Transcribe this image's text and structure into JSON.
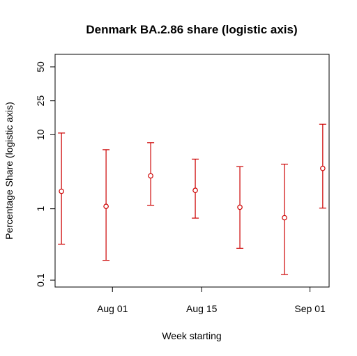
{
  "chart_data": {
    "type": "scatter",
    "title": "Denmark BA.2.86 share (logistic axis)",
    "xlabel": "Week starting",
    "ylabel": "Percentage Share (logistic axis)",
    "y_scale": "logit",
    "ylim": [
      0.08,
      60
    ],
    "xlim": [
      "2023-07-23",
      "2023-09-04"
    ],
    "x_ticks": [
      {
        "date": "2023-08-01",
        "label": "Aug 01"
      },
      {
        "date": "2023-08-15",
        "label": "Aug 15"
      },
      {
        "date": "2023-09-01",
        "label": "Sep 01"
      }
    ],
    "y_ticks": [
      {
        "value": 0.1,
        "label": "0.1"
      },
      {
        "value": 1,
        "label": "1"
      },
      {
        "value": 10,
        "label": "10"
      },
      {
        "value": 25,
        "label": "25"
      },
      {
        "value": 50,
        "label": "50"
      }
    ],
    "series": [
      {
        "color": "#cc0000",
        "points": [
          {
            "x": "2023-07-24",
            "y": 1.75,
            "lower": 0.32,
            "upper": 10.5
          },
          {
            "x": "2023-07-31",
            "y": 1.08,
            "lower": 0.19,
            "upper": 6.4
          },
          {
            "x": "2023-08-07",
            "y": 2.85,
            "lower": 1.12,
            "upper": 7.9
          },
          {
            "x": "2023-08-14",
            "y": 1.8,
            "lower": 0.74,
            "upper": 4.8
          },
          {
            "x": "2023-08-21",
            "y": 1.05,
            "lower": 0.28,
            "upper": 3.8
          },
          {
            "x": "2023-08-28",
            "y": 0.75,
            "lower": 0.12,
            "upper": 4.1
          },
          {
            "x": "2023-09-03",
            "y": 3.6,
            "lower": 1.02,
            "upper": 13.5
          }
        ]
      }
    ],
    "grid": false,
    "legend": "none"
  }
}
